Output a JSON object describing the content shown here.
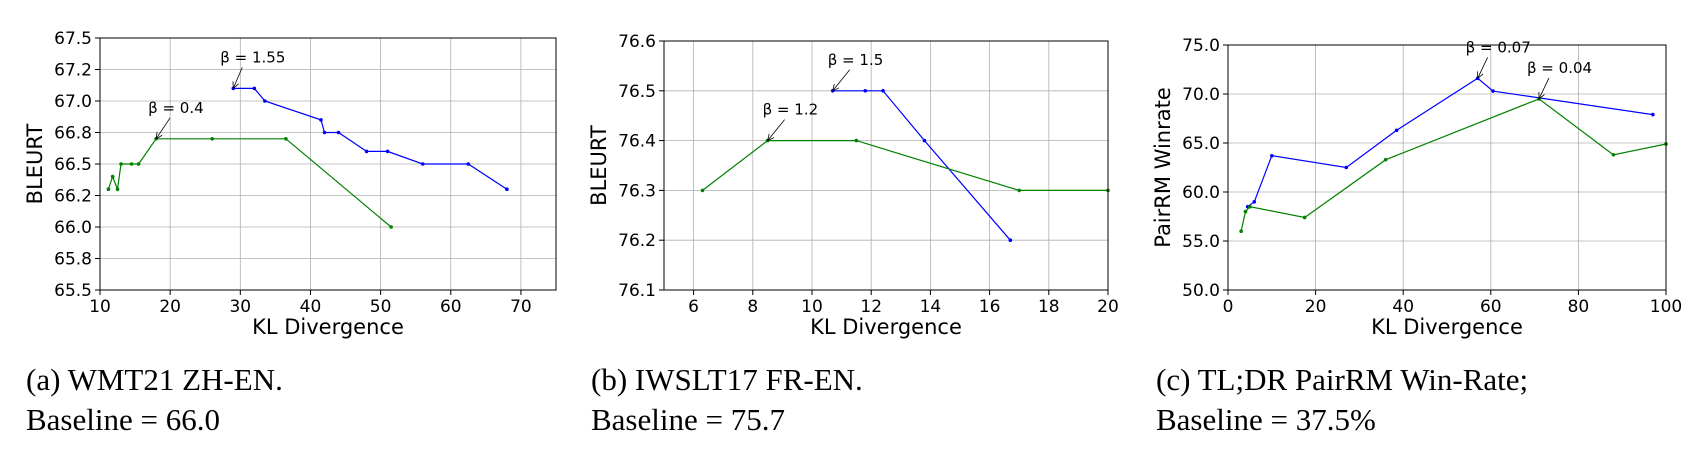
{
  "chart_data": [
    {
      "type": "line",
      "xlabel": "KL Divergence",
      "ylabel": "BLEURT",
      "xlim": [
        10,
        75
      ],
      "ylim": [
        65.5,
        67.5
      ],
      "xticks": [
        10,
        20,
        30,
        40,
        50,
        60,
        70
      ],
      "xtick_labels": [
        "10",
        "20",
        "30",
        "40",
        "50",
        "60",
        "70"
      ],
      "yticks": [
        65.5,
        65.75,
        66.0,
        66.25,
        66.5,
        66.75,
        67.0,
        67.25,
        67.5
      ],
      "ytick_labels": [
        "65.5",
        "65.8",
        "66.0",
        "66.2",
        "66.5",
        "66.8",
        "67.0",
        "67.2",
        "67.5"
      ],
      "grid": true,
      "series": [
        {
          "color": "#0000ff",
          "x": [
            29.0,
            32.0,
            33.5,
            41.5,
            42.0,
            44.0,
            48.0,
            51.0,
            56.0,
            62.5,
            68.0
          ],
          "y": [
            67.1,
            67.1,
            67.0,
            66.85,
            66.75,
            66.75,
            66.6,
            66.6,
            66.5,
            66.5,
            66.3
          ]
        },
        {
          "color": "#008000",
          "x": [
            11.2,
            11.8,
            12.5,
            13.0,
            14.5,
            15.5,
            18.0,
            26.0,
            36.5,
            51.5
          ],
          "y": [
            66.3,
            66.4,
            66.3,
            66.5,
            66.5,
            66.5,
            66.7,
            66.7,
            66.7,
            66.0
          ]
        }
      ],
      "annotations": [
        {
          "text": "β = 1.55",
          "x": 29.0,
          "y": 67.1
        },
        {
          "text": "β = 0.4",
          "x": 18.0,
          "y": 66.7
        }
      ]
    },
    {
      "type": "line",
      "xlabel": "KL Divergence",
      "ylabel": "BLEURT",
      "xlim": [
        5,
        20
      ],
      "ylim": [
        76.1,
        76.6
      ],
      "xticks": [
        6,
        8,
        10,
        12,
        14,
        16,
        18,
        20
      ],
      "xtick_labels": [
        "6",
        "8",
        "10",
        "12",
        "14",
        "16",
        "18",
        "20"
      ],
      "yticks": [
        76.1,
        76.2,
        76.3,
        76.4,
        76.5,
        76.6
      ],
      "ytick_labels": [
        "76.1",
        "76.2",
        "76.3",
        "76.4",
        "76.5",
        "76.6"
      ],
      "grid": true,
      "series": [
        {
          "color": "#0000ff",
          "x": [
            10.7,
            11.8,
            12.4,
            13.8,
            16.7
          ],
          "y": [
            76.5,
            76.5,
            76.5,
            76.4,
            76.2
          ]
        },
        {
          "color": "#008000",
          "x": [
            6.3,
            8.5,
            11.5,
            17.0,
            20.0
          ],
          "y": [
            76.3,
            76.4,
            76.4,
            76.3,
            76.3
          ]
        }
      ],
      "annotations": [
        {
          "text": "β = 1.5",
          "x": 10.7,
          "y": 76.5
        },
        {
          "text": "β = 1.2",
          "x": 8.5,
          "y": 76.4
        }
      ]
    },
    {
      "type": "line",
      "xlabel": "KL Divergence",
      "ylabel": "PairRM Winrate",
      "xlim": [
        0,
        100
      ],
      "ylim": [
        50,
        75
      ],
      "xticks": [
        0,
        20,
        40,
        60,
        80,
        100
      ],
      "xtick_labels": [
        "0",
        "20",
        "40",
        "60",
        "80",
        "100"
      ],
      "yticks": [
        50,
        55,
        60,
        65,
        70,
        75
      ],
      "ytick_labels": [
        "50.0",
        "55.0",
        "60.0",
        "65.0",
        "70.0",
        "75.0"
      ],
      "grid": true,
      "series": [
        {
          "color": "#0000ff",
          "x": [
            4.5,
            6.0,
            10.0,
            27.0,
            38.5,
            57.0,
            60.5,
            97.0
          ],
          "y": [
            58.5,
            59.0,
            63.7,
            62.5,
            66.3,
            71.6,
            70.3,
            67.9
          ]
        },
        {
          "color": "#008000",
          "x": [
            3.0,
            4.0,
            5.0,
            17.5,
            36.0,
            71.0,
            88.0,
            100.0
          ],
          "y": [
            56.0,
            58.0,
            58.5,
            57.4,
            63.3,
            69.5,
            63.8,
            64.9
          ]
        }
      ],
      "annotations": [
        {
          "text": "β = 0.07",
          "x": 57.0,
          "y": 71.6
        },
        {
          "text": "β = 0.04",
          "x": 71.0,
          "y": 69.5
        }
      ]
    }
  ],
  "captions": [
    {
      "line1": "(a) WMT21 ZH-EN.",
      "line2": "Baseline = 66.0"
    },
    {
      "line1": "(b) IWSLT17 FR-EN.",
      "line2": "Baseline = 75.7"
    },
    {
      "line1": "(c) TL;DR PairRM Win-Rate;",
      "line2": "Baseline = 37.5%"
    }
  ]
}
